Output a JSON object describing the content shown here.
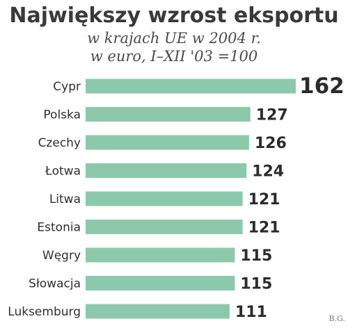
{
  "chart_data": {
    "type": "bar",
    "orientation": "horizontal",
    "title": "Największy wzrost eksportu",
    "subtitle_lines": [
      "w krajach UE w 2004 r.",
      "w euro, I–XII '03 =100"
    ],
    "categories": [
      "Cypr",
      "Polska",
      "Czechy",
      "Łotwa",
      "Litwa",
      "Estonia",
      "Węgry",
      "Słowacja",
      "Luksemburg"
    ],
    "values": [
      162,
      127,
      126,
      124,
      121,
      121,
      115,
      115,
      111
    ],
    "highlight_index": 0,
    "grid": false,
    "legend": "none"
  },
  "colors": {
    "bar": "#8cc9ac",
    "highlight_value": "#d8344a",
    "value_text": "#2b2b2b",
    "title_text": "#3a3a3a"
  },
  "credit": "B.G."
}
